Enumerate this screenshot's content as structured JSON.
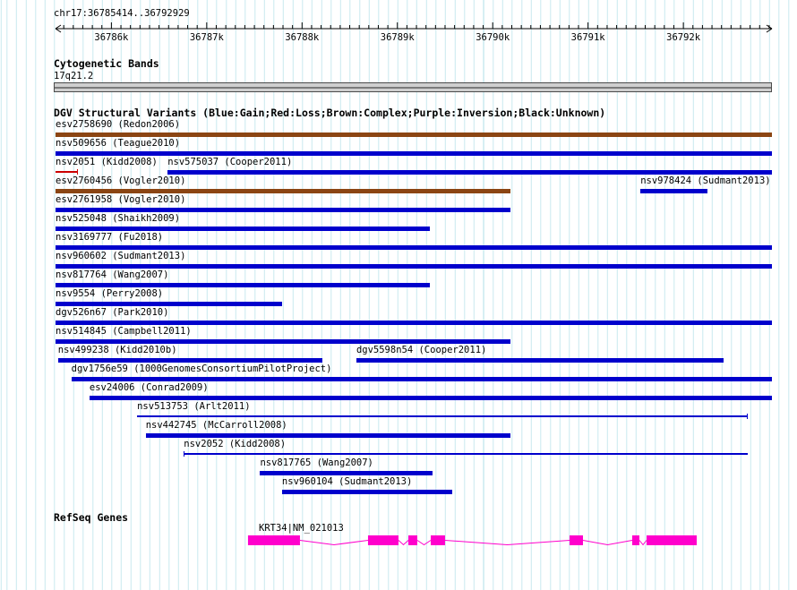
{
  "header": {
    "region": "chr17:36785414..36792929"
  },
  "ruler": {
    "start": 36785414,
    "end": 36792929,
    "minor_tick_interval": 100,
    "major_ticks": [
      {
        "pos": 36786000,
        "label": "36786k"
      },
      {
        "pos": 36787000,
        "label": "36787k"
      },
      {
        "pos": 36788000,
        "label": "36788k"
      },
      {
        "pos": 36789000,
        "label": "36789k"
      },
      {
        "pos": 36790000,
        "label": "36790k"
      },
      {
        "pos": 36791000,
        "label": "36791k"
      },
      {
        "pos": 36792000,
        "label": "36792k"
      }
    ]
  },
  "cytobands": {
    "title": "Cytogenetic Bands",
    "band": "17q21.2"
  },
  "dgv": {
    "title": "DGV Structural Variants (Blue:Gain;Red:Loss;Brown:Complex;Purple:Inversion;Black:Unknown)",
    "legend_colors": {
      "gain": "#0000cc",
      "loss": "#cc0000",
      "complex": "#8b4513",
      "inversion": "#800080",
      "unknown": "#000000"
    },
    "rows": [
      [
        {
          "label": "esv2758690 (Redon2006)",
          "type": "complex",
          "start": 36785414,
          "end": 36792929,
          "shape": "box"
        }
      ],
      [
        {
          "label": "nsv509656 (Teague2010)",
          "type": "gain",
          "start": 36785414,
          "end": 36792929,
          "shape": "box"
        }
      ],
      [
        {
          "label": "nsv2051 (Kidd2008)",
          "type": "loss",
          "start": 36785414,
          "end": 36785650,
          "shape": "line-right-tick"
        },
        {
          "label": "nsv575037 (Cooper2011)",
          "type": "gain",
          "start": 36786590,
          "end": 36792929,
          "shape": "box"
        }
      ],
      [
        {
          "label": "esv2760456 (Vogler2010)",
          "type": "complex",
          "start": 36785414,
          "end": 36790190,
          "shape": "box"
        },
        {
          "label": "nsv978424 (Sudmant2013)",
          "type": "gain",
          "start": 36791550,
          "end": 36792250,
          "shape": "box"
        }
      ],
      [
        {
          "label": "esv2761958 (Vogler2010)",
          "type": "gain",
          "start": 36785414,
          "end": 36790190,
          "shape": "box"
        }
      ],
      [
        {
          "label": "nsv525048 (Shaikh2009)",
          "type": "gain",
          "start": 36785414,
          "end": 36789340,
          "shape": "box"
        }
      ],
      [
        {
          "label": "nsv3169777 (Fu2018)",
          "type": "gain",
          "start": 36785414,
          "end": 36792929,
          "shape": "box"
        }
      ],
      [
        {
          "label": "nsv960602 (Sudmant2013)",
          "type": "gain",
          "start": 36785414,
          "end": 36792929,
          "shape": "box"
        }
      ],
      [
        {
          "label": "nsv817764 (Wang2007)",
          "type": "gain",
          "start": 36785414,
          "end": 36789340,
          "shape": "box"
        }
      ],
      [
        {
          "label": "nsv9554 (Perry2008)",
          "type": "gain",
          "start": 36785414,
          "end": 36787790,
          "shape": "box"
        }
      ],
      [
        {
          "label": "dgv526n67 (Park2010)",
          "type": "gain",
          "start": 36785414,
          "end": 36792929,
          "shape": "box"
        }
      ],
      [
        {
          "label": "nsv514845 (Campbell2011)",
          "type": "gain",
          "start": 36785414,
          "end": 36790190,
          "shape": "box"
        }
      ],
      [
        {
          "label": "nsv499238 (Kidd2010b)",
          "type": "gain",
          "start": 36785440,
          "end": 36788210,
          "shape": "box"
        },
        {
          "label": "dgv5598n54 (Cooper2011)",
          "type": "gain",
          "start": 36788570,
          "end": 36792420,
          "shape": "box"
        }
      ],
      [
        {
          "label": "dgv1756e59 (1000GenomesConsortiumPilotProject)",
          "type": "gain",
          "start": 36785580,
          "end": 36792929,
          "shape": "box"
        }
      ],
      [
        {
          "label": "esv24006 (Conrad2009)",
          "type": "gain",
          "start": 36785770,
          "end": 36792929,
          "shape": "box"
        }
      ],
      [
        {
          "label": "nsv513753 (Arlt2011)",
          "type": "gain",
          "start": 36786270,
          "end": 36792675,
          "shape": "line-right-tick"
        }
      ],
      [
        {
          "label": "nsv442745 (McCarroll2008)",
          "type": "gain",
          "start": 36786360,
          "end": 36790190,
          "shape": "box"
        }
      ],
      [
        {
          "label": "nsv2052 (Kidd2008)",
          "type": "gain",
          "start": 36786760,
          "end": 36792675,
          "shape": "line-left-tick"
        }
      ],
      [
        {
          "label": "nsv817765 (Wang2007)",
          "type": "gain",
          "start": 36787560,
          "end": 36789370,
          "shape": "box"
        }
      ],
      [
        {
          "label": "nsv960104 (Sudmant2013)",
          "type": "gain",
          "start": 36787790,
          "end": 36789575,
          "shape": "box"
        }
      ]
    ]
  },
  "refseq": {
    "title": "RefSeq Genes",
    "color": "#ff00cc",
    "genes": [
      {
        "name": "KRT34|NM_021013",
        "exons": [
          [
            36787433,
            36787978
          ],
          [
            36788692,
            36789012
          ],
          [
            36789115,
            36789209
          ],
          [
            36789350,
            36789500
          ],
          [
            36790806,
            36790947
          ],
          [
            36791463,
            36791539
          ],
          [
            36791614,
            36792140
          ]
        ]
      }
    ]
  }
}
